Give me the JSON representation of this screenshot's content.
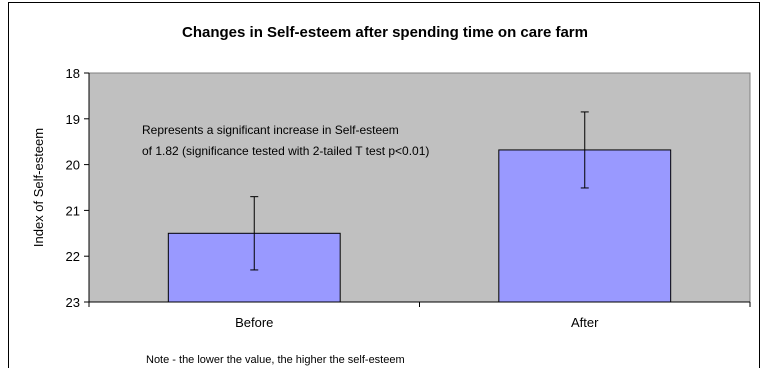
{
  "chart_data": {
    "type": "bar",
    "title": "Changes in Self-esteem after spending time on care farm",
    "xlabel": "",
    "ylabel": "Index of Self-esteem",
    "categories": [
      "Before",
      "After"
    ],
    "values": [
      21.5,
      19.68
    ],
    "error": [
      0.8,
      0.83
    ],
    "ylim": [
      18,
      23
    ],
    "y_inverted": true,
    "yticks": [
      "18",
      "19",
      "20",
      "21",
      "22",
      "23"
    ],
    "grid": false,
    "legend": "none",
    "annotation_line1": "Represents a significant increase in Self-esteem",
    "annotation_line2": "of 1.82 (significance tested with 2-tailed T test p<0.01)",
    "note": "Note - the lower the value, the higher the self-esteem",
    "colors": {
      "plot_bg": "#c0c0c0",
      "bar": "#9999ff"
    }
  }
}
